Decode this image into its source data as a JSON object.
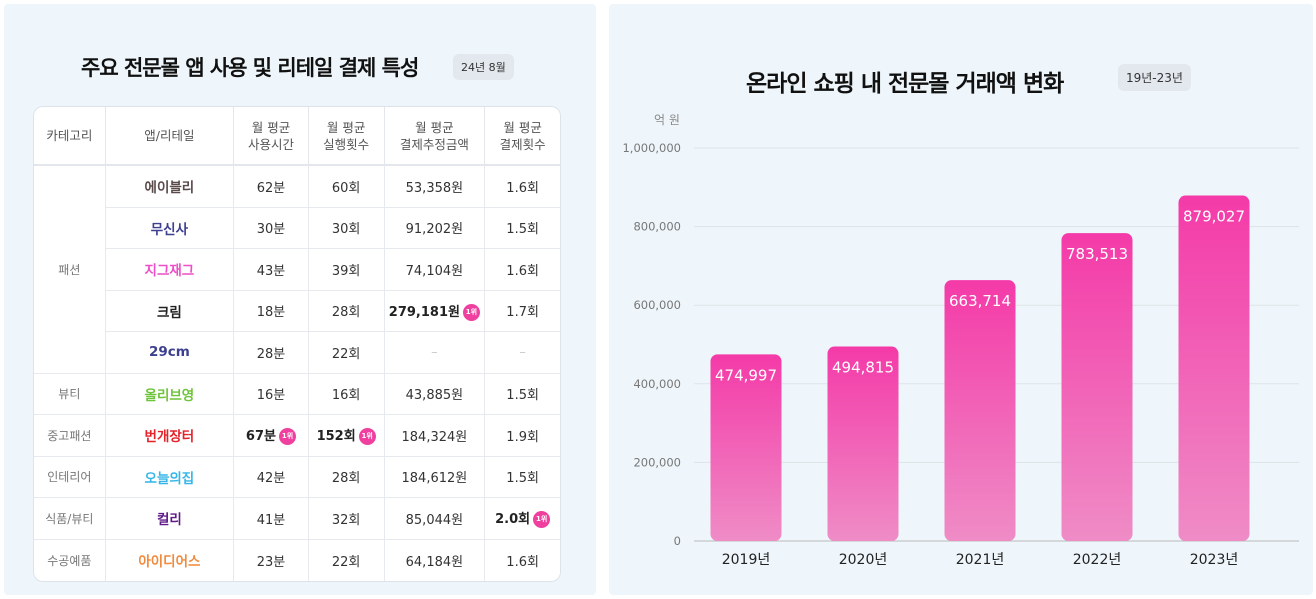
{
  "table_panel": {
    "title": "주요 전문몰 앱 사용 및 리테일 결제 특성",
    "badge": "24년 8월",
    "headers": [
      "카테고리",
      "앱/리테일",
      "월 평균\n사용시간",
      "월 평균\n실행횟수",
      "월 평균\n결제추정금액",
      "월 평균\n결제횟수"
    ],
    "rank_label": "1위",
    "rows": [
      {
        "category": "패션",
        "app": "에이블리",
        "color": "#5a4a4a",
        "time": "62분",
        "runs": "60회",
        "amount": "53,358원",
        "pays": "1.6회"
      },
      {
        "category": "",
        "app": "무신사",
        "color": "#3d3f8f",
        "time": "30분",
        "runs": "30회",
        "amount": "91,202원",
        "pays": "1.5회"
      },
      {
        "category": "",
        "app": "지그재그",
        "color": "#ec4fc7",
        "time": "43분",
        "runs": "39회",
        "amount": "74,104원",
        "pays": "1.6회"
      },
      {
        "category": "",
        "app": "크림",
        "color": "#222222",
        "time": "18분",
        "runs": "28회",
        "amount": "279,181원",
        "pays": "1.7회",
        "rank": [
          "amount"
        ]
      },
      {
        "category": "",
        "app": "29cm",
        "color": "#3d3f8f",
        "time": "28분",
        "runs": "22회",
        "amount": "–",
        "pays": "–"
      },
      {
        "category": "뷰티",
        "app": "올리브영",
        "color": "#6ec43a",
        "time": "16분",
        "runs": "16회",
        "amount": "43,885원",
        "pays": "1.5회"
      },
      {
        "category": "중고패션",
        "app": "번개장터",
        "color": "#e2232a",
        "time": "67분",
        "runs": "152회",
        "amount": "184,324원",
        "pays": "1.9회",
        "rank": [
          "time",
          "runs"
        ]
      },
      {
        "category": "인테리어",
        "app": "오늘의집",
        "color": "#35b6e8",
        "time": "42분",
        "runs": "28회",
        "amount": "184,612원",
        "pays": "1.5회"
      },
      {
        "category": "식품/뷰티",
        "app": "컬리",
        "color": "#5f1a87",
        "time": "41분",
        "runs": "32회",
        "amount": "85,044원",
        "pays": "2.0회",
        "rank": [
          "pays"
        ]
      },
      {
        "category": "수공예품",
        "app": "아이디어스",
        "color": "#f08a3c",
        "time": "23분",
        "runs": "22회",
        "amount": "64,184원",
        "pays": "1.6회"
      }
    ]
  },
  "chart_data": {
    "type": "bar",
    "title": "온라인 쇼핑 내 전문몰 거래액 변화",
    "badge": "19년-23년",
    "ylabel": "억 원",
    "categories": [
      "2019년",
      "2020년",
      "2021년",
      "2022년",
      "2023년"
    ],
    "values": [
      474997,
      494815,
      663714,
      783513,
      879027
    ],
    "value_labels": [
      "474,997",
      "494,815",
      "663,714",
      "783,513",
      "879,027"
    ],
    "ylim": [
      0,
      1000000
    ],
    "yticks": [
      0,
      200000,
      400000,
      600000,
      800000,
      1000000
    ],
    "ytick_labels": [
      "0",
      "200,000",
      "400,000",
      "600,000",
      "800,000",
      "1,000,000"
    ],
    "grid": true,
    "colors": {
      "bar_light": "#ef8cc6",
      "bar_dark": "#f43aa8"
    }
  }
}
